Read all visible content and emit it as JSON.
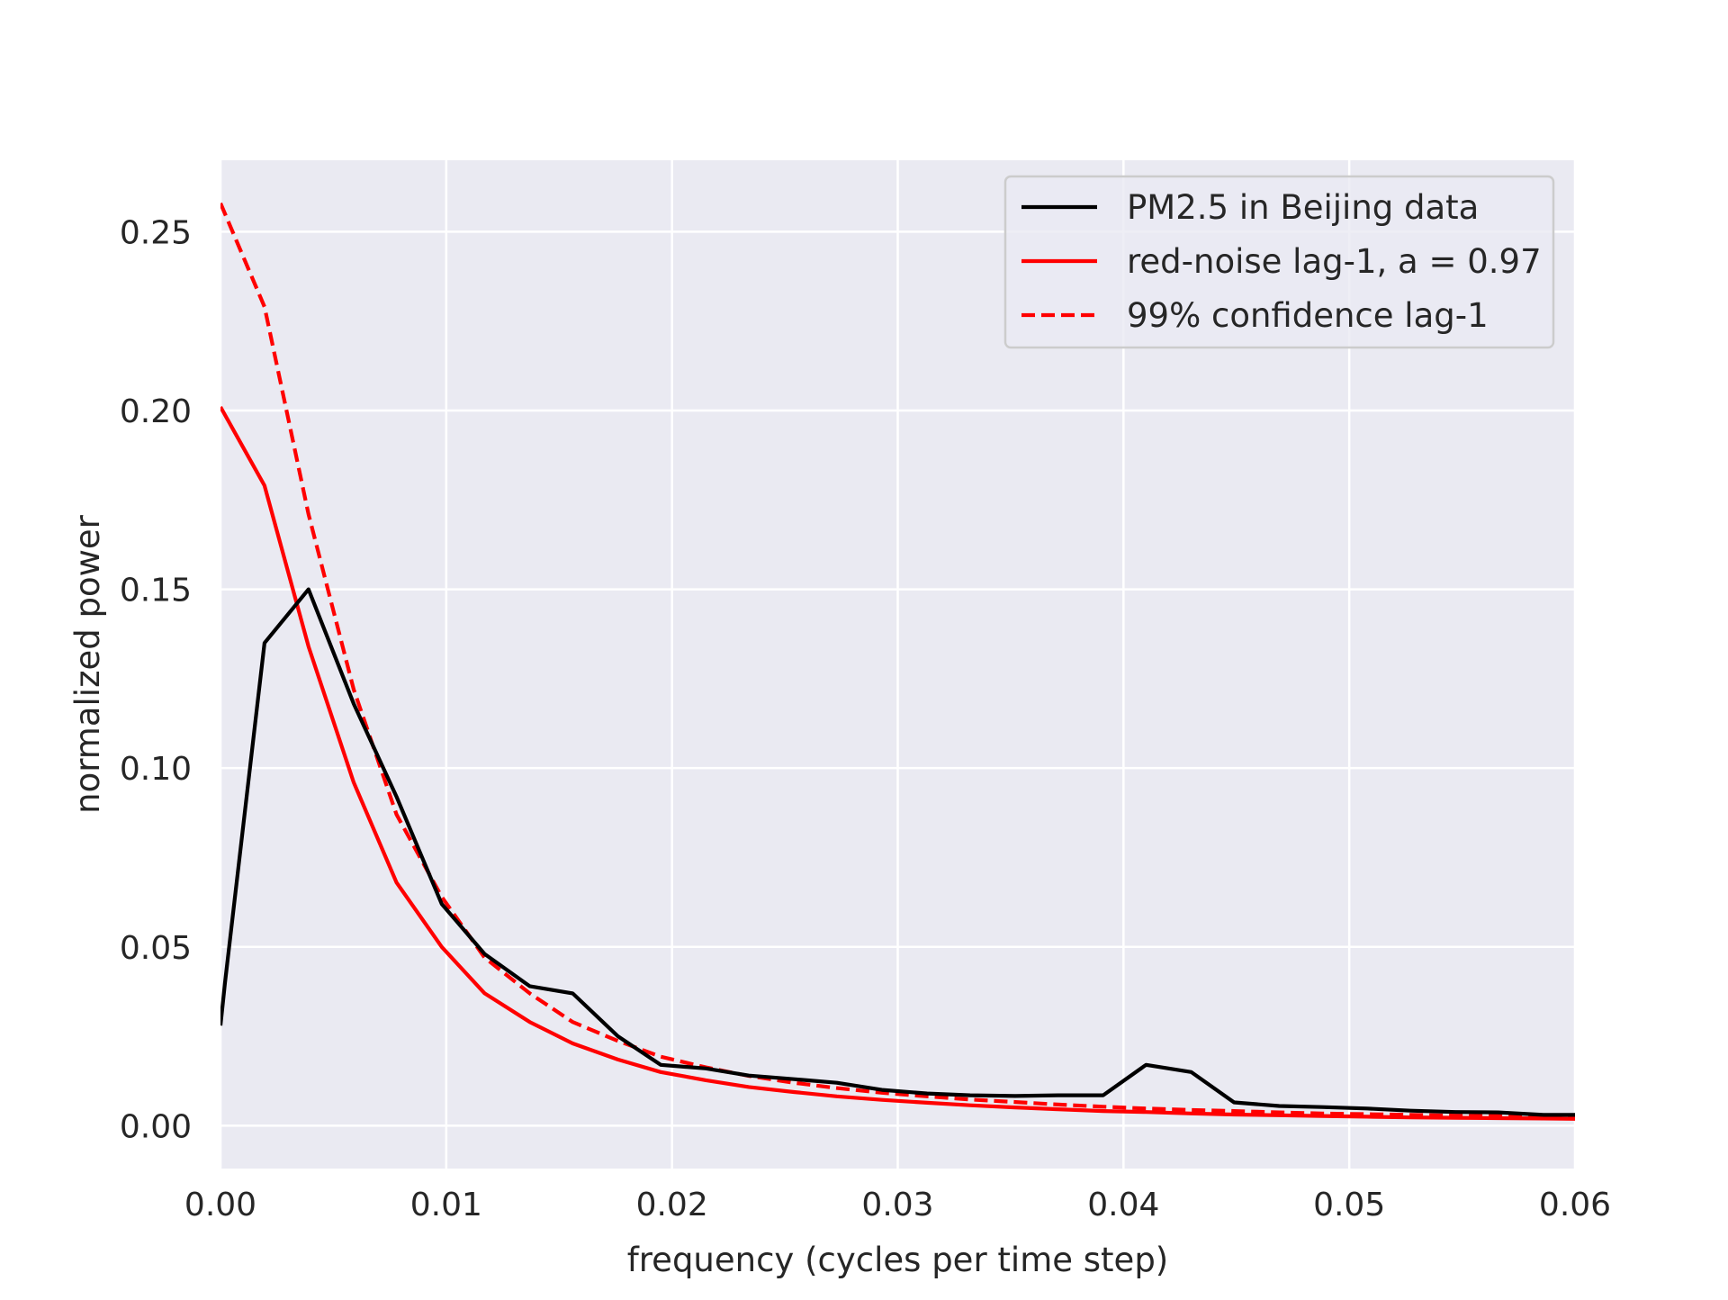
{
  "chart_data": {
    "type": "line",
    "xlabel": "frequency (cycles per time step)",
    "ylabel": "normalized power",
    "xlim": [
      0,
      0.06
    ],
    "ylim": [
      -0.012,
      0.27
    ],
    "xticks": [
      0.0,
      0.01,
      0.02,
      0.03,
      0.04,
      0.05,
      0.06
    ],
    "xtick_labels": [
      "0.00",
      "0.01",
      "0.02",
      "0.03",
      "0.04",
      "0.05",
      "0.06"
    ],
    "yticks": [
      0.0,
      0.05,
      0.1,
      0.15,
      0.2,
      0.25
    ],
    "ytick_labels": [
      "0.00",
      "0.05",
      "0.10",
      "0.15",
      "0.20",
      "0.25"
    ],
    "grid": true,
    "legend_position": "top-right",
    "series": [
      {
        "name": "PM2.5 in Beijing data",
        "color": "#000000",
        "style": "solid",
        "points": [
          [
            0.0,
            0.028
          ],
          [
            0.0002,
            0.04
          ],
          [
            0.00195,
            0.135
          ],
          [
            0.0039,
            0.15
          ],
          [
            0.0059,
            0.118
          ],
          [
            0.0078,
            0.092
          ],
          [
            0.0098,
            0.062
          ],
          [
            0.0117,
            0.048
          ],
          [
            0.0137,
            0.039
          ],
          [
            0.0156,
            0.037
          ],
          [
            0.0176,
            0.025
          ],
          [
            0.0195,
            0.017
          ],
          [
            0.0215,
            0.016
          ],
          [
            0.0234,
            0.014
          ],
          [
            0.0254,
            0.013
          ],
          [
            0.0273,
            0.012
          ],
          [
            0.0293,
            0.01
          ],
          [
            0.0313,
            0.009
          ],
          [
            0.0332,
            0.0085
          ],
          [
            0.0352,
            0.0083
          ],
          [
            0.0371,
            0.0085
          ],
          [
            0.0391,
            0.0085
          ],
          [
            0.041,
            0.017
          ],
          [
            0.043,
            0.015
          ],
          [
            0.0449,
            0.0065
          ],
          [
            0.0469,
            0.0055
          ],
          [
            0.0488,
            0.0052
          ],
          [
            0.0508,
            0.0048
          ],
          [
            0.0527,
            0.0042
          ],
          [
            0.0547,
            0.0038
          ],
          [
            0.0566,
            0.0037
          ],
          [
            0.0586,
            0.003
          ],
          [
            0.06,
            0.003
          ]
        ]
      },
      {
        "name": "red-noise lag-1, a = 0.97",
        "color": "#ff0000",
        "style": "solid",
        "points": [
          [
            0.0,
            0.201
          ],
          [
            0.00195,
            0.179
          ],
          [
            0.0039,
            0.134
          ],
          [
            0.0059,
            0.096
          ],
          [
            0.0078,
            0.068
          ],
          [
            0.0098,
            0.05
          ],
          [
            0.0117,
            0.037
          ],
          [
            0.0137,
            0.029
          ],
          [
            0.0156,
            0.023
          ],
          [
            0.0176,
            0.0185
          ],
          [
            0.0195,
            0.015
          ],
          [
            0.0215,
            0.0127
          ],
          [
            0.0234,
            0.0108
          ],
          [
            0.0254,
            0.0094
          ],
          [
            0.0273,
            0.0082
          ],
          [
            0.0293,
            0.0072
          ],
          [
            0.0313,
            0.0064
          ],
          [
            0.0332,
            0.0057
          ],
          [
            0.0352,
            0.0051
          ],
          [
            0.0371,
            0.0046
          ],
          [
            0.0391,
            0.0041
          ],
          [
            0.041,
            0.0038
          ],
          [
            0.043,
            0.0034
          ],
          [
            0.0449,
            0.0031
          ],
          [
            0.0469,
            0.0029
          ],
          [
            0.0488,
            0.0027
          ],
          [
            0.0508,
            0.0025
          ],
          [
            0.0527,
            0.0023
          ],
          [
            0.0547,
            0.0022
          ],
          [
            0.0566,
            0.0021
          ],
          [
            0.0586,
            0.002
          ],
          [
            0.06,
            0.0019
          ]
        ]
      },
      {
        "name": "99% confidence lag-1",
        "color": "#ff0000",
        "style": "dashed",
        "points": [
          [
            0.0,
            0.258
          ],
          [
            0.00195,
            0.229
          ],
          [
            0.0039,
            0.171
          ],
          [
            0.0059,
            0.122
          ],
          [
            0.0078,
            0.087
          ],
          [
            0.0098,
            0.064
          ],
          [
            0.0117,
            0.047
          ],
          [
            0.0137,
            0.037
          ],
          [
            0.0156,
            0.029
          ],
          [
            0.0176,
            0.0237
          ],
          [
            0.0195,
            0.0193
          ],
          [
            0.0215,
            0.0163
          ],
          [
            0.0234,
            0.0139
          ],
          [
            0.0254,
            0.012
          ],
          [
            0.0273,
            0.0105
          ],
          [
            0.0293,
            0.0092
          ],
          [
            0.0313,
            0.0082
          ],
          [
            0.0332,
            0.0073
          ],
          [
            0.0352,
            0.0066
          ],
          [
            0.0371,
            0.0059
          ],
          [
            0.0391,
            0.0053
          ],
          [
            0.041,
            0.0048
          ],
          [
            0.043,
            0.0044
          ],
          [
            0.0449,
            0.0041
          ],
          [
            0.0469,
            0.0037
          ],
          [
            0.0488,
            0.0034
          ],
          [
            0.0508,
            0.0032
          ],
          [
            0.0527,
            0.003
          ],
          [
            0.0547,
            0.0028
          ],
          [
            0.0566,
            0.0027
          ],
          [
            0.0586,
            0.0025
          ],
          [
            0.06,
            0.0025
          ]
        ]
      }
    ]
  }
}
